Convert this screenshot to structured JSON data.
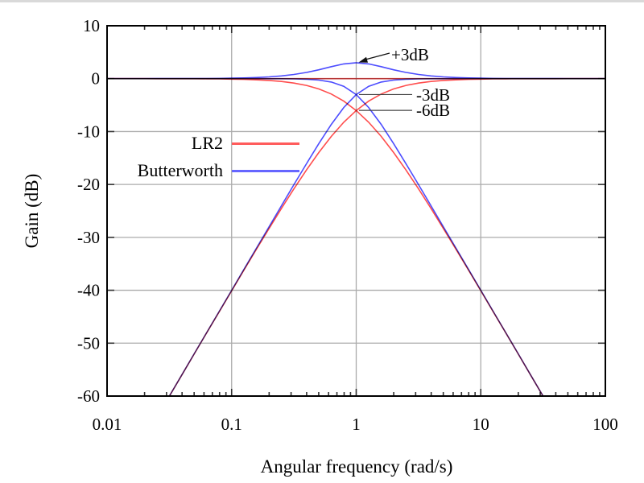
{
  "page": {
    "top_strip_color": "#d9d9d9",
    "background": "#ffffff"
  },
  "axes": {
    "xlabel": "Angular frequency (rad/s)",
    "ylabel": "Gain (dB)"
  },
  "chart_data": {
    "type": "line",
    "title": "",
    "xlabel": "Angular frequency (rad/s)",
    "ylabel": "Gain (dB)",
    "x_scale": "log",
    "xlim": [
      0.01,
      100
    ],
    "ylim": [
      -60,
      10
    ],
    "grid": true,
    "grid_color": "#ababab",
    "tick_color": "#333333",
    "border_color": "#000000",
    "x_ticks": [
      {
        "log": -2,
        "label": "0.01"
      },
      {
        "log": -1,
        "label": "0.1"
      },
      {
        "log": 0,
        "label": "1"
      },
      {
        "log": 1,
        "label": "10"
      },
      {
        "log": 2,
        "label": "100"
      }
    ],
    "y_ticks": [
      {
        "value": 10,
        "label": "10"
      },
      {
        "value": 0,
        "label": "0"
      },
      {
        "value": -10,
        "label": "-10"
      },
      {
        "value": -20,
        "label": "-20"
      },
      {
        "value": -30,
        "label": "-30"
      },
      {
        "value": -40,
        "label": "-40"
      },
      {
        "value": -50,
        "label": "-50"
      },
      {
        "value": -60,
        "label": "-60"
      }
    ],
    "grid_x_logs": [
      -1,
      0,
      1
    ],
    "grid_y_values": [
      0,
      -10,
      -20,
      -30,
      -40,
      -50
    ],
    "log_omega": [
      -2,
      -1.9,
      -1.8,
      -1.7,
      -1.6,
      -1.5,
      -1.4,
      -1.3,
      -1.2,
      -1.1,
      -1,
      -0.9,
      -0.8,
      -0.7,
      -0.6,
      -0.5,
      -0.4,
      -0.3,
      -0.2,
      -0.1,
      0,
      0.1,
      0.2,
      0.3,
      0.4,
      0.5,
      0.6,
      0.7,
      0.8,
      0.9,
      1,
      1.1,
      1.2,
      1.3,
      1.4,
      1.5,
      1.6,
      1.7,
      1.8,
      1.9,
      2
    ],
    "series": [
      {
        "name": "lr2-lowpass",
        "group": "LR2",
        "color": "#ff4d4d",
        "values": [
          0,
          0,
          0,
          0,
          -0.01,
          -0.01,
          -0.01,
          -0.02,
          -0.03,
          -0.05,
          -0.09,
          -0.14,
          -0.22,
          -0.34,
          -0.53,
          -0.83,
          -1.28,
          -1.95,
          -2.91,
          -4.25,
          -6.02,
          -8.25,
          -10.91,
          -13.95,
          -17.28,
          -20.83,
          -24.53,
          -28.34,
          -32.22,
          -36.14,
          -40.09,
          -44.06,
          -48.03,
          -52.02,
          -56.01,
          -60.01,
          -64.01,
          -68,
          -72,
          -76,
          -80
        ]
      },
      {
        "name": "lr2-highpass",
        "group": "LR2",
        "color": "#ff4d4d",
        "values": [
          -80,
          -76,
          -72,
          -68,
          -64.01,
          -60.01,
          -56.01,
          -52.02,
          -48.03,
          -44.06,
          -40.09,
          -36.14,
          -32.22,
          -28.34,
          -24.53,
          -20.83,
          -17.28,
          -13.95,
          -10.91,
          -8.25,
          -6.02,
          -4.25,
          -2.91,
          -1.95,
          -1.28,
          -0.83,
          -0.53,
          -0.34,
          -0.22,
          -0.14,
          -0.09,
          -0.05,
          -0.03,
          -0.02,
          -0.01,
          -0.01,
          -0.01,
          0,
          0,
          0,
          0
        ]
      },
      {
        "name": "lr2-sum",
        "group": "LR2",
        "color": "#ff4d4d",
        "x": [
          -2,
          2
        ],
        "values": [
          0,
          0
        ]
      },
      {
        "name": "butterworth-lowpass",
        "group": "Butterworth",
        "color": "#4d4dff",
        "values": [
          0,
          0,
          0,
          0,
          0,
          0,
          0,
          0,
          0,
          0,
          0,
          0,
          0,
          -0.01,
          -0.02,
          -0.04,
          -0.11,
          -0.27,
          -0.64,
          -1.45,
          -3.01,
          -5.46,
          -8.64,
          -12.27,
          -16.11,
          -20.04,
          -24.02,
          -28.01,
          -32,
          -36,
          -40,
          -44,
          -48,
          -52,
          -56,
          -60,
          -64,
          -68,
          -72,
          -76,
          -80
        ]
      },
      {
        "name": "butterworth-highpass",
        "group": "Butterworth",
        "color": "#4d4dff",
        "values": [
          -80,
          -76,
          -72,
          -68,
          -64,
          -60,
          -56,
          -52,
          -48,
          -44,
          -40,
          -36,
          -32,
          -28.01,
          -24.02,
          -20.04,
          -16.11,
          -12.27,
          -8.64,
          -5.46,
          -3.01,
          -1.45,
          -0.64,
          -0.27,
          -0.11,
          -0.04,
          -0.02,
          -0.01,
          0,
          0,
          0,
          0,
          0,
          0,
          0,
          0,
          0,
          0,
          0,
          0,
          0
        ]
      },
      {
        "name": "butterworth-sum",
        "group": "Butterworth",
        "color": "#4d4dff",
        "values": [
          0,
          0,
          0,
          0,
          0.01,
          0.01,
          0.01,
          0.02,
          0.03,
          0.05,
          0.09,
          0.14,
          0.21,
          0.33,
          0.52,
          0.79,
          1.17,
          1.68,
          2.27,
          2.79,
          3.01,
          2.79,
          2.27,
          1.68,
          1.17,
          0.79,
          0.52,
          0.33,
          0.21,
          0.14,
          0.09,
          0.05,
          0.03,
          0.02,
          0.01,
          0.01,
          0.01,
          0,
          0,
          0,
          0
        ]
      }
    ],
    "legend": {
      "position": "left-middle",
      "items": [
        {
          "label": "LR2",
          "color": "#ff5c5c"
        },
        {
          "label": "Butterworth",
          "color": "#6666ff"
        }
      ]
    },
    "annotations": [
      {
        "text": "+3dB",
        "type": "arrow",
        "points_to": {
          "omega": 1,
          "gain_db": 3
        }
      },
      {
        "text": "-3dB",
        "type": "pointer-line",
        "points_to": {
          "omega": 1,
          "gain_db": -3
        }
      },
      {
        "text": "-6dB",
        "type": "pointer-line",
        "points_to": {
          "omega": 1,
          "gain_db": -6
        }
      }
    ]
  }
}
